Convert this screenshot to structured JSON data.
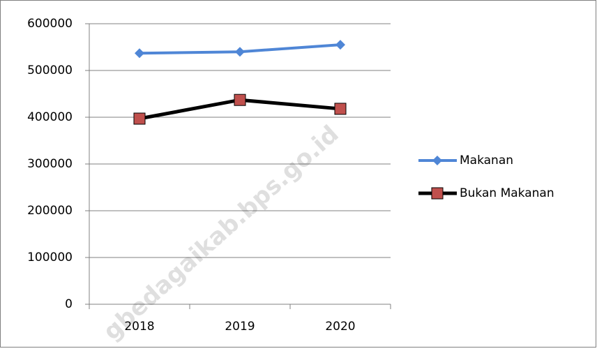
{
  "chart_data": {
    "type": "line",
    "categories": [
      "2018",
      "2019",
      "2020"
    ],
    "series": [
      {
        "name": "Makanan",
        "color": "#4f86d6",
        "marker": "diamond",
        "values": [
          537000,
          540000,
          555000
        ]
      },
      {
        "name": "Bukan Makanan",
        "color": "#000000",
        "marker": "square",
        "marker_color": "#c0504d",
        "values": [
          397000,
          437000,
          418000
        ]
      }
    ],
    "ylim": [
      0,
      600000
    ],
    "yticks": [
      0,
      100000,
      200000,
      300000,
      400000,
      500000,
      600000
    ],
    "grid": true,
    "grid_color": "#f9b27a",
    "legend": "right",
    "watermark": "gbedagaikab.bps.go.id"
  }
}
